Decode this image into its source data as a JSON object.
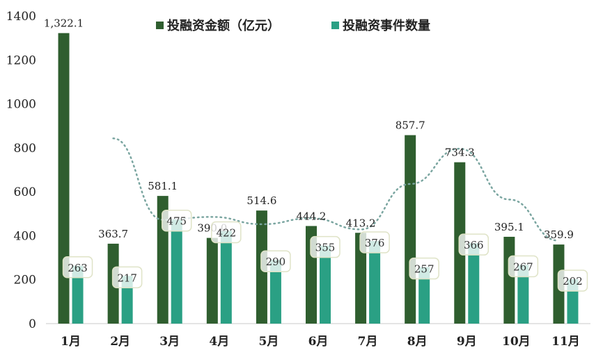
{
  "chart_data": {
    "type": "bar",
    "title": "",
    "xlabel": "",
    "ylabel": "",
    "categories": [
      "1月",
      "2月",
      "3月",
      "4月",
      "5月",
      "6月",
      "7月",
      "8月",
      "9月",
      "10月",
      "11月"
    ],
    "series": [
      {
        "name": "投融资金额（亿元）",
        "color": "#2f5e2f",
        "values": [
          1322.1,
          363.7,
          581.1,
          390.0,
          514.6,
          444.2,
          413.2,
          857.7,
          734.3,
          395.1,
          359.9
        ],
        "labels": [
          "1,322.1",
          "363.7",
          "581.1",
          "390.0",
          "514.6",
          "444.2",
          "413.2",
          "857.7",
          "734.3",
          "395.1",
          "359.9"
        ]
      },
      {
        "name": "投融资事件数量",
        "color": "#2aa084",
        "values": [
          263,
          217,
          475,
          422,
          290,
          355,
          376,
          257,
          366,
          267,
          202
        ],
        "labels": [
          "263",
          "217",
          "475",
          "422",
          "290",
          "355",
          "376",
          "257",
          "366",
          "267",
          "202"
        ]
      }
    ],
    "trendline": {
      "style": "dotted",
      "color": "#7aa5a0",
      "x_range": [
        "2月",
        "11月"
      ]
    },
    "ylim": [
      0,
      1400
    ],
    "yticks": [
      0,
      200,
      400,
      600,
      800,
      1000,
      1200,
      1400
    ],
    "grid": false,
    "legend": "top-center"
  }
}
